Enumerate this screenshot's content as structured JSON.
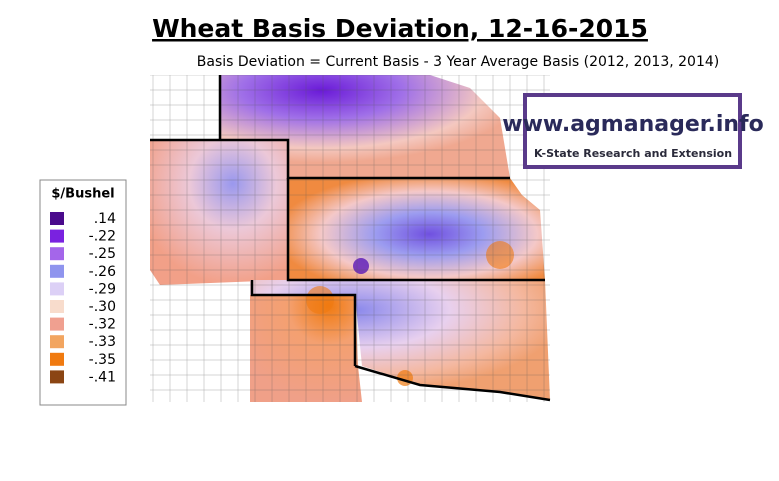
{
  "header": {
    "title": "Wheat Basis Deviation, 12-16-2015",
    "subtitle": "Basis Deviation = Current Basis - 3 Year Average Basis (2012, 2013, 2014)"
  },
  "legend": {
    "title": "$/Bushel",
    "items": [
      {
        "label": ".14",
        "color": "#4a0a8c"
      },
      {
        "label": "-.22",
        "color": "#7a22e0"
      },
      {
        "label": "-.25",
        "color": "#a466ea"
      },
      {
        "label": "-.26",
        "color": "#8f94ee"
      },
      {
        "label": "-.29",
        "color": "#dcd0f6"
      },
      {
        "label": "-.30",
        "color": "#f8dccc"
      },
      {
        "label": "-.32",
        "color": "#f0a090"
      },
      {
        "label": "-.33",
        "color": "#f2a560"
      },
      {
        "label": "-.35",
        "color": "#f07a10"
      },
      {
        "label": "-.41",
        "color": "#8b4513"
      }
    ]
  },
  "logo": {
    "url": "www.agmanager.info",
    "org": "K-State Research and Extension"
  }
}
